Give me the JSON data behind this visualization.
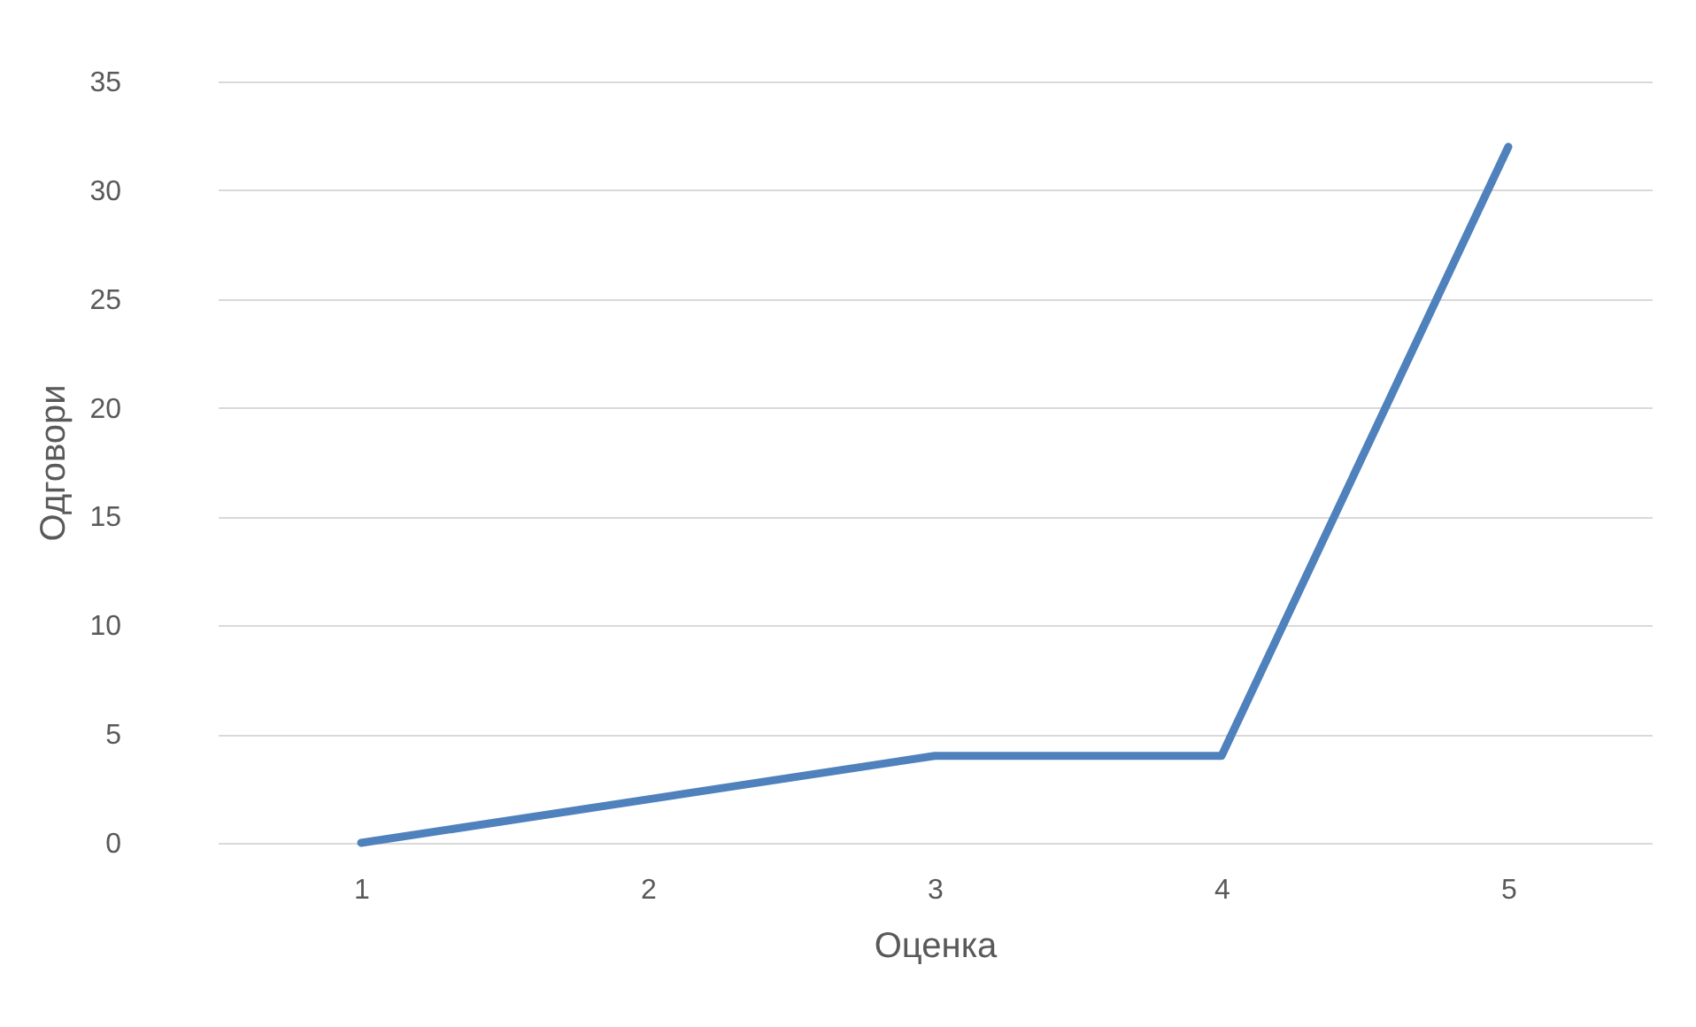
{
  "chart_data": {
    "type": "line",
    "xlabel": "Оценка",
    "ylabel": "Одговори",
    "categories": [
      "1",
      "2",
      "3",
      "4",
      "5"
    ],
    "series": [
      {
        "color": "#4f81bd",
        "values": [
          0,
          2,
          4,
          4,
          32
        ]
      }
    ],
    "ylim": [
      0,
      35
    ],
    "yticks": [
      0,
      5,
      10,
      15,
      20,
      25,
      30,
      35
    ],
    "grid": "y",
    "marker": "none",
    "line_style": "solid"
  }
}
